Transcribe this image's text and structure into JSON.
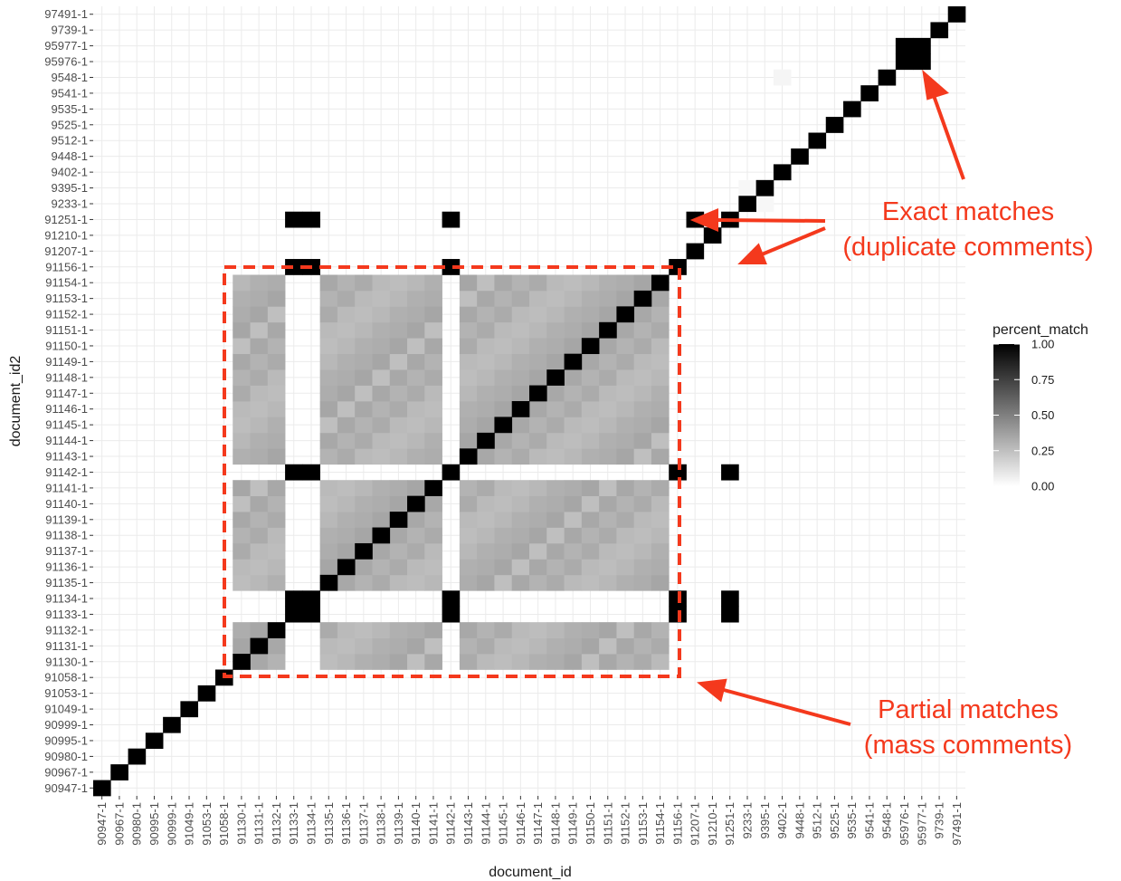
{
  "chart_data": {
    "type": "heatmap",
    "title": "",
    "xlabel": "document_id",
    "ylabel": "document_id2",
    "categories": [
      "90947-1",
      "90967-1",
      "90980-1",
      "90995-1",
      "90999-1",
      "91049-1",
      "91053-1",
      "91058-1",
      "91130-1",
      "91131-1",
      "91132-1",
      "91133-1",
      "91134-1",
      "91135-1",
      "91136-1",
      "91137-1",
      "91138-1",
      "91139-1",
      "91140-1",
      "91141-1",
      "91142-1",
      "91143-1",
      "91144-1",
      "91145-1",
      "91146-1",
      "91147-1",
      "91148-1",
      "91149-1",
      "91150-1",
      "91151-1",
      "91152-1",
      "91153-1",
      "91154-1",
      "91156-1",
      "91207-1",
      "91210-1",
      "91251-1",
      "9233-1",
      "9395-1",
      "9402-1",
      "9448-1",
      "9512-1",
      "9525-1",
      "9535-1",
      "9541-1",
      "9548-1",
      "95976-1",
      "95977-1",
      "9739-1",
      "97491-1"
    ],
    "value_field": "percent_match",
    "value_range": [
      0,
      1
    ],
    "legend": {
      "title": "percent_match",
      "position": "right",
      "ticks": [
        "1.00",
        "0.75",
        "0.50",
        "0.25",
        "0.00"
      ],
      "tick_values": [
        1.0,
        0.75,
        0.5,
        0.25,
        0.0
      ],
      "color_low": "#ffffff",
      "color_high": "#000000"
    },
    "diagonal_value": 1.0,
    "partial_match_block": {
      "members": [
        "91130-1",
        "91131-1",
        "91132-1",
        "91135-1",
        "91136-1",
        "91137-1",
        "91138-1",
        "91139-1",
        "91140-1",
        "91141-1",
        "91143-1",
        "91144-1",
        "91145-1",
        "91146-1",
        "91147-1",
        "91148-1",
        "91149-1",
        "91150-1",
        "91151-1",
        "91152-1",
        "91153-1",
        "91154-1"
      ],
      "approx_value": 0.3
    },
    "exact_match_group": {
      "rows": [
        "91133-1",
        "91134-1",
        "91142-1",
        "91156-1",
        "91251-1"
      ],
      "cols": [
        "91133-1",
        "91134-1",
        "91142-1",
        "91156-1",
        "91251-1"
      ],
      "value": 1.0,
      "exclude_pairs": [
        [
          "91251-1",
          "91156-1"
        ],
        [
          "91251-1",
          "91251-1"
        ],
        [
          "91156-1",
          "91251-1"
        ]
      ]
    },
    "extra_cells": [
      {
        "x": "95976-1",
        "y": "95977-1",
        "value": 1.0
      },
      {
        "x": "95977-1",
        "y": "95976-1",
        "value": 1.0
      },
      {
        "x": "9233-1",
        "y": "9395-1",
        "value": 0.03
      },
      {
        "x": "9395-1",
        "y": "9233-1",
        "value": 0.03
      },
      {
        "x": "9402-1",
        "y": "9548-1",
        "value": 0.04
      },
      {
        "x": "91207-1",
        "y": "91251-1",
        "value": 1.0
      }
    ],
    "grid": true,
    "annotations": [
      {
        "id": "exact",
        "lines": [
          "Exact matches",
          "(duplicate comments)"
        ]
      },
      {
        "id": "partial",
        "lines": [
          "Partial matches",
          "(mass comments)"
        ]
      }
    ],
    "annotation_color": "#f4391d"
  }
}
